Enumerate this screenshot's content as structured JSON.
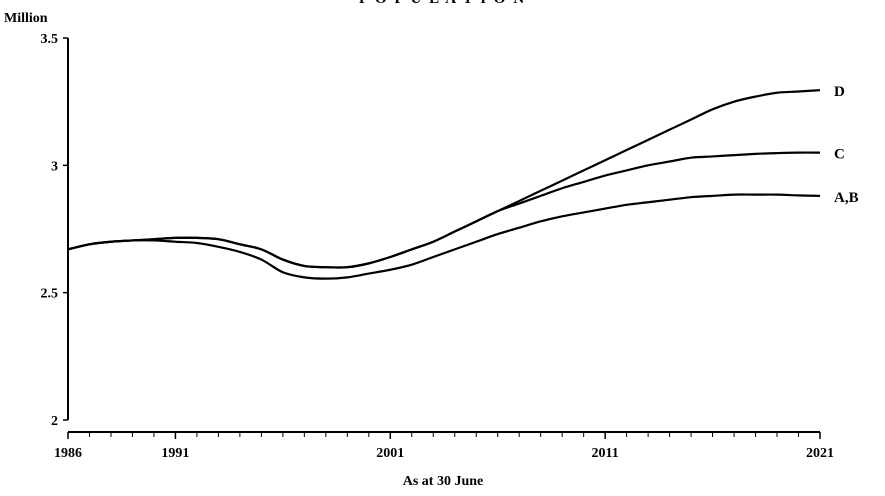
{
  "top_title": "P O P U L A T I O N",
  "chart_data": {
    "type": "line",
    "title": "",
    "y_unit_label": "Million",
    "xlabel": "As at 30 June",
    "ylabel": "",
    "xlim": [
      1986,
      2021
    ],
    "ylim": [
      2,
      3.5
    ],
    "x_ticks": [
      1986,
      1991,
      2001,
      2011,
      2021
    ],
    "y_ticks": [
      2,
      2.5,
      3,
      3.5
    ],
    "y_tick_labels": [
      "2",
      "2.5",
      "3",
      "3.5"
    ],
    "grid": false,
    "legend": "end-of-line labels",
    "line_color": "#000000",
    "series": [
      {
        "name": "D",
        "x": [
          1986,
          1987,
          1988,
          1989,
          1990,
          1991,
          1992,
          1993,
          1994,
          1995,
          1996,
          1997,
          1998,
          1999,
          2000,
          2001,
          2002,
          2003,
          2004,
          2005,
          2006,
          2007,
          2008,
          2009,
          2010,
          2011,
          2012,
          2013,
          2014,
          2015,
          2016,
          2017,
          2018,
          2019,
          2020,
          2021
        ],
        "values": [
          2.67,
          2.69,
          2.7,
          2.705,
          2.71,
          2.715,
          2.715,
          2.71,
          2.69,
          2.67,
          2.63,
          2.605,
          2.6,
          2.6,
          2.615,
          2.64,
          2.67,
          2.7,
          2.74,
          2.78,
          2.82,
          2.86,
          2.9,
          2.94,
          2.98,
          3.02,
          3.06,
          3.1,
          3.14,
          3.18,
          3.22,
          3.25,
          3.27,
          3.285,
          3.29,
          3.295
        ]
      },
      {
        "name": "C",
        "x": [
          1986,
          1987,
          1988,
          1989,
          1990,
          1991,
          1992,
          1993,
          1994,
          1995,
          1996,
          1997,
          1998,
          1999,
          2000,
          2001,
          2002,
          2003,
          2004,
          2005,
          2006,
          2007,
          2008,
          2009,
          2010,
          2011,
          2012,
          2013,
          2014,
          2015,
          2016,
          2017,
          2018,
          2019,
          2020,
          2021
        ],
        "values": [
          2.67,
          2.69,
          2.7,
          2.705,
          2.71,
          2.715,
          2.715,
          2.71,
          2.69,
          2.67,
          2.63,
          2.605,
          2.6,
          2.6,
          2.615,
          2.64,
          2.67,
          2.7,
          2.74,
          2.78,
          2.82,
          2.85,
          2.88,
          2.91,
          2.935,
          2.96,
          2.98,
          3.0,
          3.015,
          3.03,
          3.035,
          3.04,
          3.045,
          3.048,
          3.05,
          3.05
        ]
      },
      {
        "name": "A,B",
        "x": [
          1986,
          1987,
          1988,
          1989,
          1990,
          1991,
          1992,
          1993,
          1994,
          1995,
          1996,
          1997,
          1998,
          1999,
          2000,
          2001,
          2002,
          2003,
          2004,
          2005,
          2006,
          2007,
          2008,
          2009,
          2010,
          2011,
          2012,
          2013,
          2014,
          2015,
          2016,
          2017,
          2018,
          2019,
          2020,
          2021
        ],
        "values": [
          2.67,
          2.69,
          2.7,
          2.705,
          2.705,
          2.7,
          2.695,
          2.68,
          2.66,
          2.63,
          2.58,
          2.56,
          2.555,
          2.56,
          2.575,
          2.59,
          2.61,
          2.64,
          2.67,
          2.7,
          2.73,
          2.755,
          2.78,
          2.8,
          2.815,
          2.83,
          2.845,
          2.855,
          2.865,
          2.875,
          2.88,
          2.885,
          2.885,
          2.885,
          2.882,
          2.88
        ]
      }
    ]
  }
}
